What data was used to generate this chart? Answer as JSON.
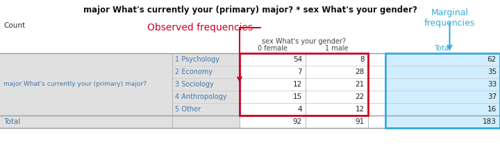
{
  "title": "major What's currently your (primary) major? * sex What's your gender?",
  "count_label": "Count",
  "col_header": "sex What's your gender?",
  "col_subheaders": [
    "0 female",
    "1 male"
  ],
  "total_col": "Total",
  "row_label": "major What's currently your (primary) major?",
  "row_categories": [
    "1 Psychology",
    "2 Economy",
    "3 Sociology",
    "4 Anthropology",
    "5 Other"
  ],
  "data": [
    [
      54,
      8,
      62
    ],
    [
      7,
      28,
      35
    ],
    [
      12,
      21,
      33
    ],
    [
      15,
      22,
      37
    ],
    [
      4,
      12,
      16
    ]
  ],
  "totals": [
    92,
    91,
    183
  ],
  "total_row_label": "Total",
  "observed_label": "Observed frequencies",
  "marginal_label": "Marginal\nfrequencies",
  "red_color": "#cc0022",
  "blue_color": "#33aadd",
  "header_text_color": "#33aadd",
  "title_color": "#111111",
  "row_label_color": "#4477aa",
  "category_color": "#4477aa",
  "gray_bg": "#e0e0e0",
  "white_bg": "#ffffff",
  "blue_bg": "#d0eeff",
  "total_row_bg": "#d0eeff"
}
